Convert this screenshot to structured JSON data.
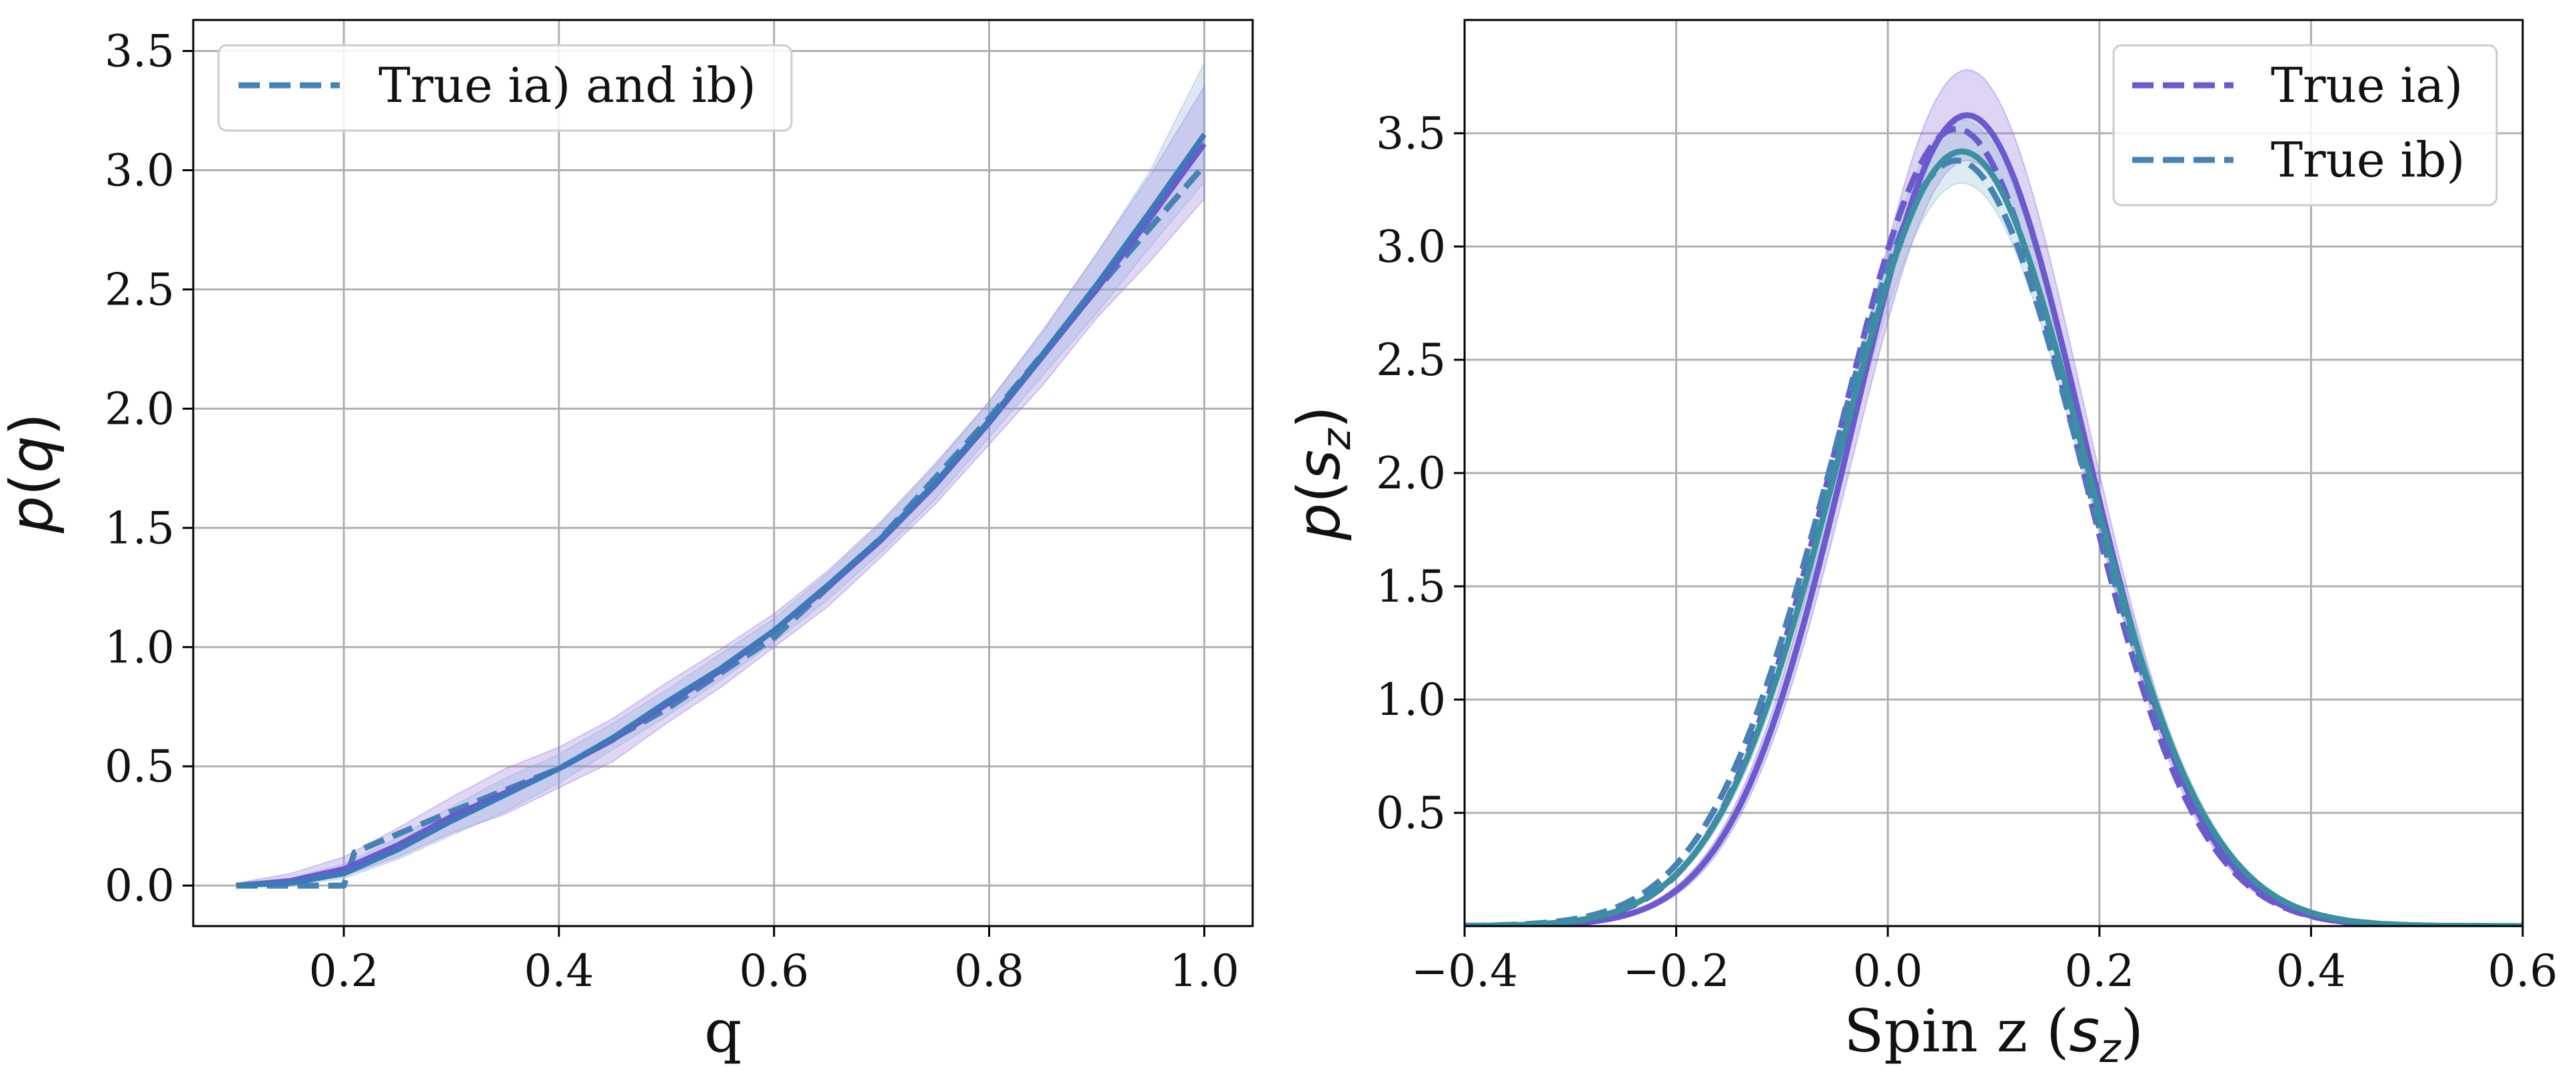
{
  "chart_data": [
    {
      "type": "line",
      "xlabel": "q",
      "ylabel": "p(q)",
      "xlim": [
        0.06,
        1.045
      ],
      "ylim": [
        -0.17,
        3.63
      ],
      "xticks": [
        0.2,
        0.4,
        0.6,
        0.8,
        1.0
      ],
      "xtick_labels": [
        "0.2",
        "0.4",
        "0.6",
        "0.8",
        "1.0"
      ],
      "yticks": [
        0.0,
        0.5,
        1.0,
        1.5,
        2.0,
        2.5,
        3.0,
        3.5
      ],
      "ytick_labels": [
        "0.0",
        "0.5",
        "1.0",
        "1.5",
        "2.0",
        "2.5",
        "3.0",
        "3.5"
      ],
      "grid": true,
      "legend_position": "top-left",
      "legend_entries": [
        {
          "label": "True ia) and ib)",
          "color": "#4682b4",
          "style": "dashed"
        }
      ],
      "series": [
        {
          "name": "True ia) and ib)",
          "style": "dashed",
          "color": "#4682b4",
          "x": [
            0.1,
            0.2,
            0.21,
            0.3,
            0.4,
            0.5,
            0.6,
            0.7,
            0.8,
            0.9,
            1.0
          ],
          "y": [
            0.0,
            0.0,
            0.14,
            0.31,
            0.49,
            0.74,
            1.04,
            1.46,
            1.96,
            2.5,
            3.02
          ]
        },
        {
          "style": "solid",
          "color": "#6a5acd",
          "x": [
            0.1,
            0.15,
            0.2,
            0.25,
            0.3,
            0.35,
            0.4,
            0.45,
            0.5,
            0.55,
            0.6,
            0.65,
            0.7,
            0.75,
            0.8,
            0.85,
            0.9,
            0.95,
            1.0
          ],
          "y": [
            0.0,
            0.02,
            0.07,
            0.17,
            0.29,
            0.39,
            0.49,
            0.61,
            0.76,
            0.9,
            1.07,
            1.25,
            1.45,
            1.68,
            1.94,
            2.22,
            2.5,
            2.8,
            3.11
          ],
          "band_lower": [
            0.0,
            0.01,
            0.04,
            0.12,
            0.22,
            0.3,
            0.41,
            0.52,
            0.68,
            0.83,
            1.0,
            1.17,
            1.38,
            1.6,
            1.85,
            2.1,
            2.38,
            2.62,
            2.88
          ],
          "band_upper": [
            0.01,
            0.05,
            0.12,
            0.24,
            0.37,
            0.49,
            0.58,
            0.7,
            0.85,
            0.99,
            1.14,
            1.32,
            1.53,
            1.77,
            2.03,
            2.33,
            2.65,
            2.98,
            3.35
          ]
        },
        {
          "style": "solid",
          "color": "#3a7ab8",
          "x": [
            0.1,
            0.15,
            0.2,
            0.25,
            0.3,
            0.35,
            0.4,
            0.45,
            0.5,
            0.55,
            0.6,
            0.65,
            0.7,
            0.75,
            0.8,
            0.85,
            0.9,
            0.95,
            1.0
          ],
          "y": [
            0.0,
            0.01,
            0.05,
            0.15,
            0.27,
            0.38,
            0.49,
            0.62,
            0.77,
            0.91,
            1.07,
            1.26,
            1.46,
            1.69,
            1.95,
            2.23,
            2.52,
            2.83,
            3.15
          ],
          "band_lower": [
            0.0,
            0.0,
            0.03,
            0.11,
            0.21,
            0.31,
            0.43,
            0.57,
            0.71,
            0.86,
            1.02,
            1.2,
            1.4,
            1.62,
            1.88,
            2.14,
            2.4,
            2.68,
            2.95
          ],
          "band_upper": [
            0.01,
            0.03,
            0.09,
            0.2,
            0.33,
            0.45,
            0.55,
            0.68,
            0.82,
            0.97,
            1.12,
            1.31,
            1.52,
            1.76,
            2.03,
            2.32,
            2.65,
            3.0,
            3.45
          ]
        }
      ]
    },
    {
      "type": "line",
      "xlabel": "Spin z (s_z)",
      "ylabel": "p(s_z)",
      "xlim": [
        -0.4,
        0.6
      ],
      "ylim": [
        0.0,
        4.0
      ],
      "xticks": [
        -0.4,
        -0.2,
        0.0,
        0.2,
        0.4,
        0.6
      ],
      "xtick_labels": [
        "−0.4",
        "−0.2",
        "0.0",
        "0.2",
        "0.4",
        "0.6"
      ],
      "yticks": [
        0.5,
        1.0,
        1.5,
        2.0,
        2.5,
        3.0,
        3.5
      ],
      "ytick_labels": [
        "0.5",
        "1.0",
        "1.5",
        "2.0",
        "2.5",
        "3.0",
        "3.5"
      ],
      "grid": true,
      "legend_position": "top-right",
      "legend_entries": [
        {
          "label": "True ia)",
          "color": "#6a5acd",
          "style": "dashed"
        },
        {
          "label": "True ib)",
          "color": "#4682b4",
          "style": "dashed"
        }
      ],
      "gaussians": [
        {
          "name": "True ia)",
          "style": "dashed",
          "color": "#6a5acd",
          "mu": 0.065,
          "sigma": 0.113,
          "amp": 3.52,
          "lw": 9
        },
        {
          "name": "True ib)",
          "style": "dashed",
          "color": "#4682b4",
          "mu": 0.065,
          "sigma": 0.118,
          "amp": 3.38,
          "lw": 9
        },
        {
          "style": "solid",
          "color": "#6a5acd",
          "mu": 0.075,
          "sigma": 0.11,
          "amp": 3.58,
          "band": 0.2,
          "lw": 9
        },
        {
          "style": "solid",
          "color": "#3a8fa0",
          "mu": 0.07,
          "sigma": 0.116,
          "amp": 3.42,
          "band": 0.14,
          "lw": 9
        }
      ]
    }
  ]
}
